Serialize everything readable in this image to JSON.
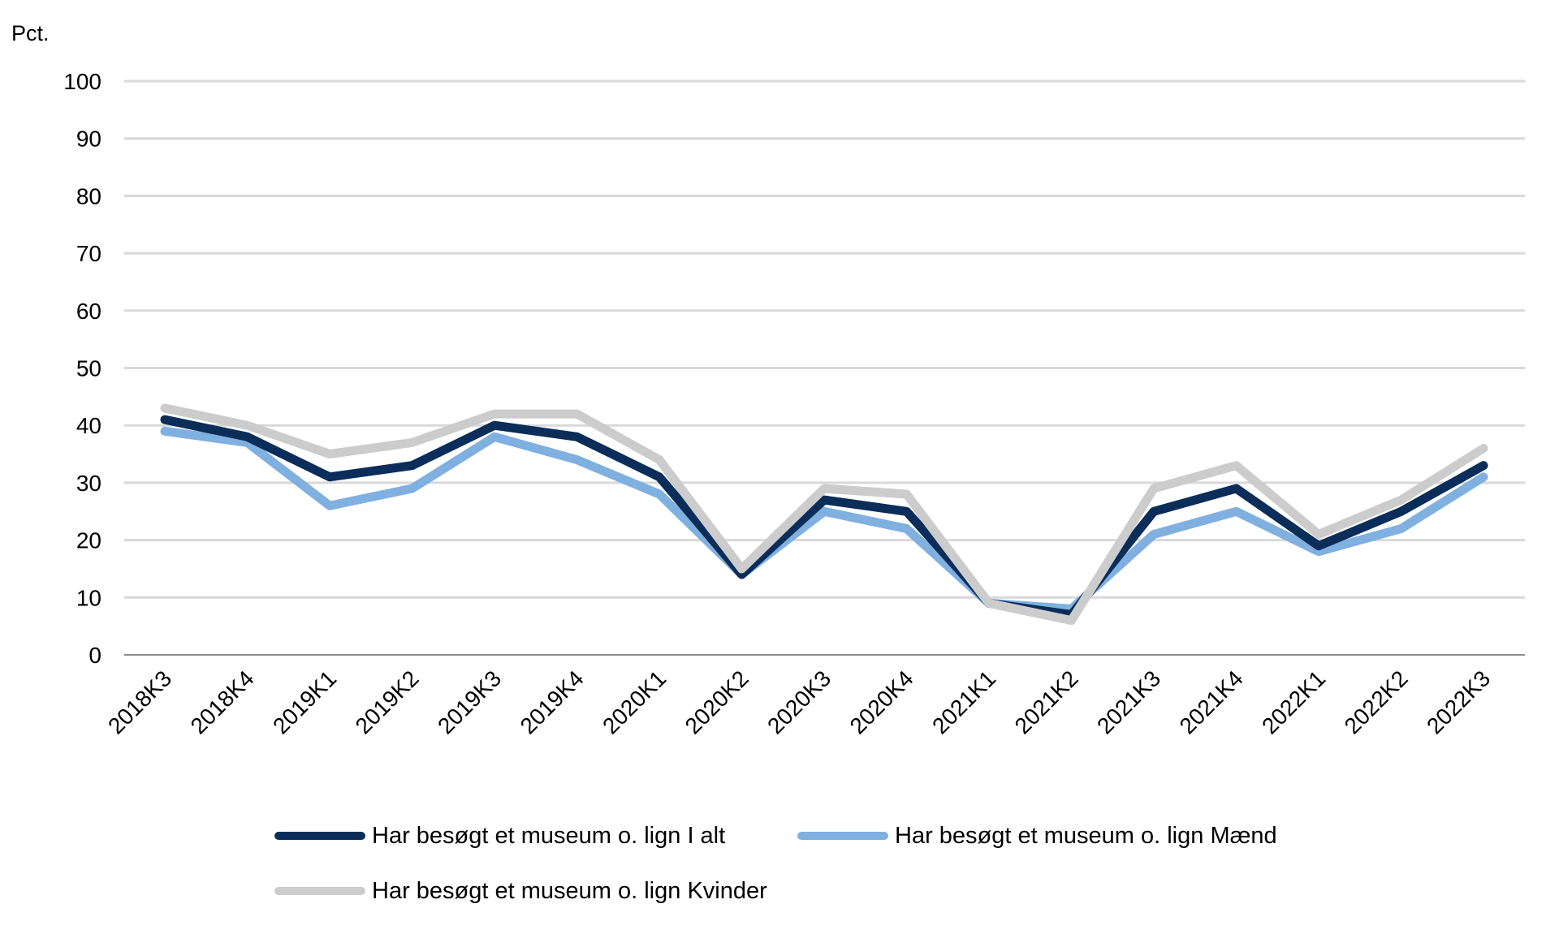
{
  "chart_data": {
    "type": "line",
    "ylabel": "Pct.",
    "ylim": [
      0,
      100
    ],
    "yticks": [
      0,
      10,
      20,
      30,
      40,
      50,
      60,
      70,
      80,
      90,
      100
    ],
    "grid": true,
    "legend_position": "bottom",
    "categories": [
      "2018K3",
      "2018K4",
      "2019K1",
      "2019K2",
      "2019K3",
      "2019K4",
      "2020K1",
      "2020K2",
      "2020K3",
      "2020K4",
      "2021K1",
      "2021K2",
      "2021K3",
      "2021K4",
      "2022K1",
      "2022K2",
      "2022K3"
    ],
    "series": [
      {
        "name": "Har besøgt et museum o. lign I alt",
        "color": "#0b2d5a",
        "values": [
          41,
          38,
          31,
          33,
          40,
          38,
          31,
          14,
          27,
          25,
          9,
          7,
          25,
          29,
          19,
          25,
          33
        ]
      },
      {
        "name": "Har besøgt et museum o. lign Mænd",
        "color": "#7fb0e0",
        "values": [
          39,
          37,
          26,
          29,
          38,
          34,
          28,
          14,
          25,
          22,
          9,
          8,
          21,
          25,
          18,
          22,
          31
        ]
      },
      {
        "name": "Har besøgt et museum o. lign Kvinder",
        "color": "#cccccc",
        "values": [
          43,
          40,
          35,
          37,
          42,
          42,
          34,
          15,
          29,
          28,
          9,
          6,
          29,
          33,
          21,
          27,
          36
        ]
      }
    ]
  }
}
